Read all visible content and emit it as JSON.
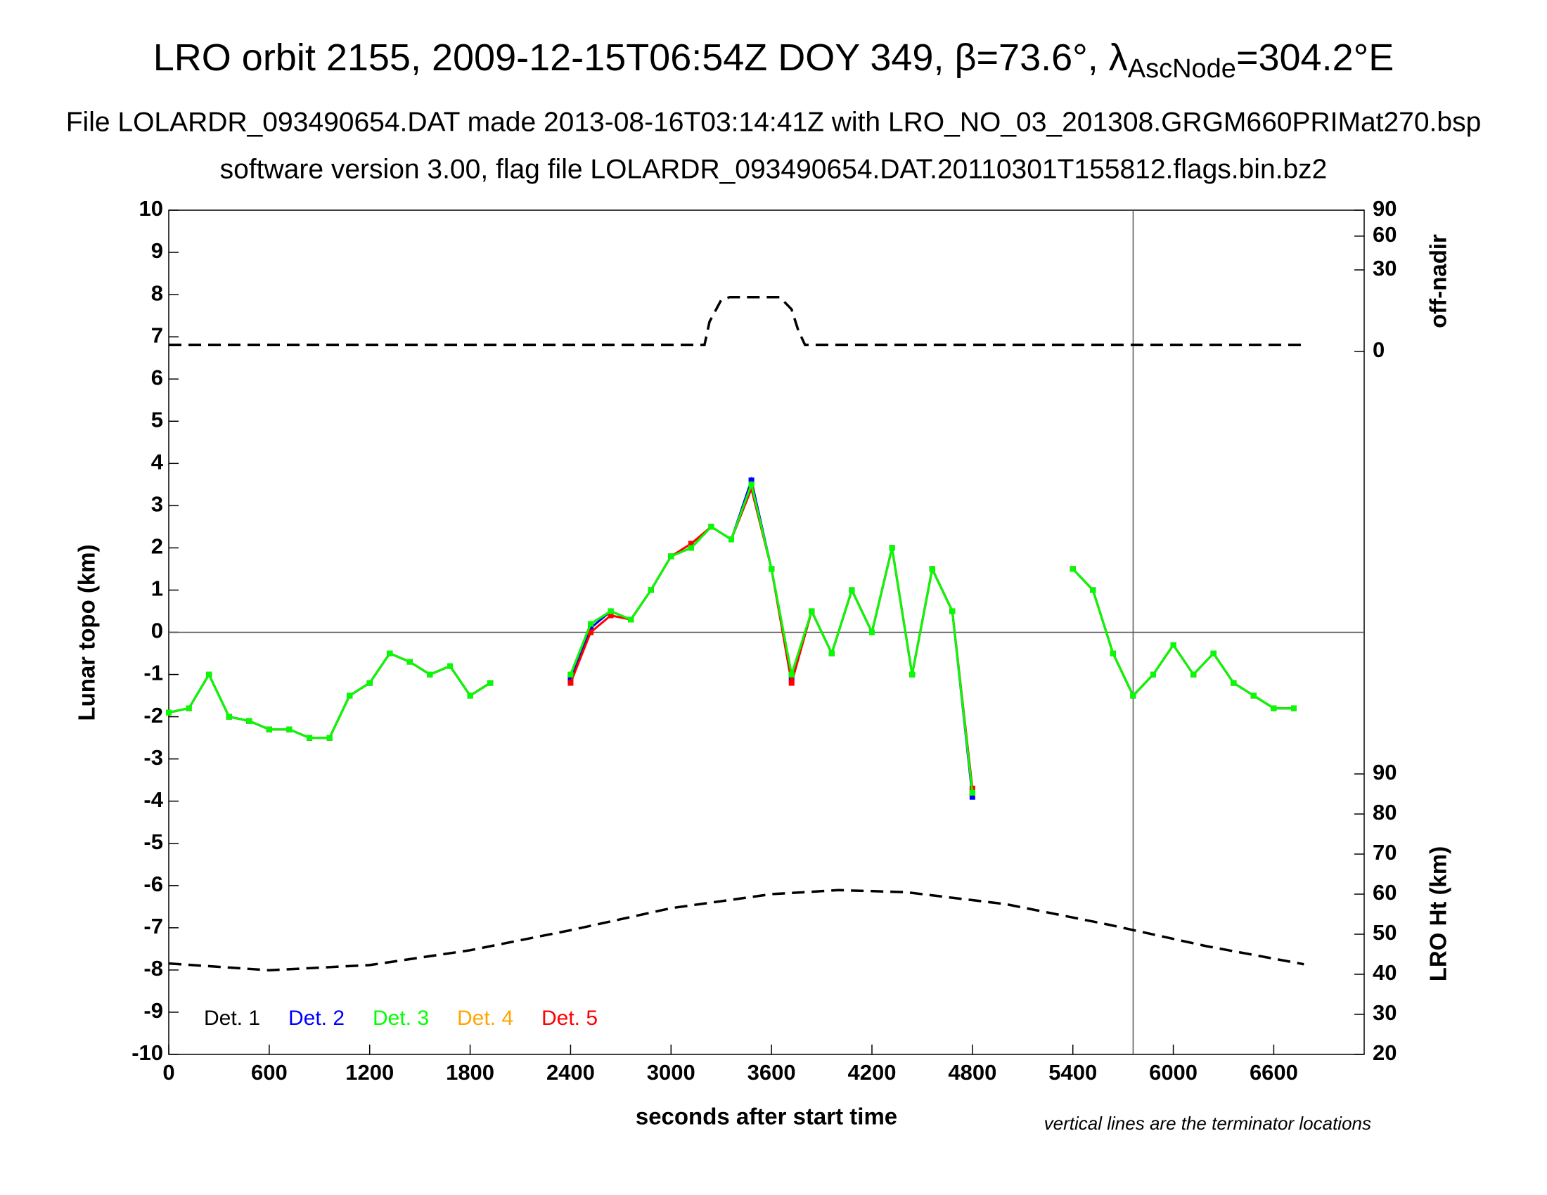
{
  "chart_data": {
    "type": "scatter",
    "title": "LRO orbit 2155, 2009-12-15T06:54Z DOY 349, β=73.6°, λ",
    "title_subscript": "AscNode",
    "title_end": "=304.2°E",
    "subtitle": "File LOLARDR_093490654.DAT made 2013-08-16T03:14:41Z with LRO_NO_03_201308.GRGM660PRIMat270.bsp",
    "subtitle2": "software version 3.00, flag file LOLARDR_093490654.DAT.20110301T155812.flags.bin.bz2",
    "xlabel": "seconds after start time",
    "ylabel": "Lunar topo (km)",
    "y2label": "off-nadir",
    "y3label": "LRO Ht (km)",
    "annotation": "vertical lines are the terminator locations",
    "xlim": [
      0,
      7140
    ],
    "xticks": [
      0,
      600,
      1200,
      1800,
      2400,
      3000,
      3600,
      4200,
      4800,
      5400,
      6000,
      6600
    ],
    "ylim": [
      -10,
      10
    ],
    "yticks": [
      -10,
      -9,
      -8,
      -7,
      -6,
      -5,
      -4,
      -3,
      -2,
      -1,
      0,
      1,
      2,
      3,
      4,
      5,
      6,
      7,
      8,
      9,
      10
    ],
    "y2lim": [
      0,
      90
    ],
    "y2scale": "sqrt",
    "y2ticks": [
      0,
      30,
      60,
      90
    ],
    "y3lim": [
      20,
      90
    ],
    "y3ticks": [
      20,
      30,
      40,
      50,
      60,
      70,
      80,
      90
    ],
    "terminator_x": [
      5760
    ],
    "x": [
      0,
      120,
      240,
      360,
      480,
      600,
      720,
      840,
      960,
      1080,
      1200,
      1320,
      1440,
      1560,
      1680,
      1800,
      1920,
      2040,
      2160,
      2280,
      2400,
      2520,
      2640,
      2760,
      2880,
      3000,
      3120,
      3240,
      3360,
      3480,
      3600,
      3720,
      3840,
      3960,
      4080,
      4200,
      4320,
      4440,
      4560,
      4680,
      4800,
      4920,
      5040,
      5160,
      5280,
      5400,
      5520,
      5640,
      5760,
      5880,
      6000,
      6120,
      6240,
      6360,
      6480,
      6600,
      6720,
      6840
    ],
    "series": [
      {
        "name": "Det. 1",
        "color": "#000000",
        "values": [
          -1.9,
          -1.8,
          -1.0,
          -2.0,
          -2.1,
          -2.3,
          -2.3,
          -2.5,
          -2.5,
          -1.5,
          -1.2,
          -0.5,
          -0.7,
          -1.0,
          -0.8,
          -1.5,
          -1.2,
          null,
          null,
          null,
          -1.0,
          0.2,
          0.5,
          0.3,
          1.0,
          1.8,
          2.0,
          2.5,
          2.2,
          3.5,
          1.5,
          -1.0,
          0.5,
          -0.5,
          1.0,
          0.0,
          2.0,
          -1.0,
          1.5,
          0.5,
          -3.8,
          null,
          null,
          null,
          null,
          1.5,
          1.0,
          -0.5,
          -1.5,
          -1.0,
          -0.3,
          -1.0,
          -0.5,
          -1.2,
          -1.5,
          -1.8,
          -1.8,
          null
        ]
      },
      {
        "name": "Det. 2",
        "color": "#0000ff",
        "values": [
          -1.9,
          -1.8,
          -1.0,
          -2.0,
          -2.1,
          -2.3,
          -2.3,
          -2.5,
          -2.5,
          -1.5,
          -1.2,
          -0.5,
          -0.7,
          -1.0,
          -0.8,
          -1.5,
          -1.2,
          null,
          null,
          null,
          -1.1,
          0.1,
          0.5,
          0.3,
          1.0,
          1.8,
          2.0,
          2.5,
          2.2,
          3.6,
          1.5,
          -1.1,
          0.5,
          -0.5,
          1.0,
          0.0,
          2.0,
          -1.0,
          1.5,
          0.5,
          -3.9,
          null,
          null,
          null,
          null,
          1.5,
          1.0,
          -0.5,
          -1.5,
          -1.0,
          -0.3,
          -1.0,
          -0.5,
          -1.2,
          -1.5,
          -1.8,
          -1.8,
          null
        ]
      },
      {
        "name": "Det. 3",
        "color": "#00ff00",
        "values": [
          -1.9,
          -1.8,
          -1.0,
          -2.0,
          -2.1,
          -2.3,
          -2.3,
          -2.5,
          -2.5,
          -1.5,
          -1.2,
          -0.5,
          -0.7,
          -1.0,
          -0.8,
          -1.5,
          -1.2,
          null,
          null,
          null,
          -1.0,
          0.2,
          0.5,
          0.3,
          1.0,
          1.8,
          2.0,
          2.5,
          2.2,
          3.5,
          1.5,
          -1.0,
          0.5,
          -0.5,
          1.0,
          0.0,
          2.0,
          -1.0,
          1.5,
          0.5,
          -3.8,
          null,
          null,
          null,
          null,
          1.5,
          1.0,
          -0.5,
          -1.5,
          -1.0,
          -0.3,
          -1.0,
          -0.5,
          -1.2,
          -1.5,
          -1.8,
          -1.8,
          null
        ]
      },
      {
        "name": "Det. 4",
        "color": "#ffa500",
        "values": [
          -1.9,
          -1.8,
          -1.0,
          -2.0,
          -2.1,
          -2.3,
          -2.3,
          -2.5,
          -2.5,
          -1.5,
          -1.2,
          -0.5,
          -0.7,
          -1.0,
          -0.8,
          -1.5,
          -1.2,
          null,
          null,
          null,
          -1.0,
          0.2,
          0.5,
          0.3,
          1.0,
          1.8,
          2.0,
          2.5,
          2.2,
          3.5,
          1.5,
          -1.0,
          0.5,
          -0.5,
          1.0,
          0.0,
          2.0,
          -1.0,
          1.5,
          0.5,
          -3.8,
          null,
          null,
          null,
          null,
          1.5,
          1.0,
          -0.5,
          -1.5,
          -1.0,
          -0.3,
          -1.0,
          -0.5,
          -1.2,
          -1.5,
          -1.8,
          -1.8,
          null
        ]
      },
      {
        "name": "Det. 5",
        "color": "#ff0000",
        "values": [
          -1.9,
          -1.8,
          -1.0,
          -2.0,
          -2.1,
          -2.3,
          -2.3,
          -2.5,
          -2.5,
          -1.5,
          -1.2,
          -0.5,
          -0.7,
          -1.0,
          -0.8,
          -1.5,
          -1.2,
          null,
          null,
          null,
          -1.2,
          0.0,
          0.4,
          0.3,
          1.0,
          1.8,
          2.1,
          2.5,
          2.2,
          3.4,
          1.5,
          -1.2,
          0.5,
          -0.5,
          1.0,
          0.0,
          2.0,
          -1.0,
          1.5,
          0.5,
          -3.7,
          null,
          null,
          null,
          null,
          1.5,
          1.0,
          -0.5,
          -1.5,
          -1.0,
          -0.3,
          -1.0,
          -0.5,
          -1.2,
          -1.5,
          -1.8,
          -1.8,
          null
        ]
      }
    ],
    "off_nadir": {
      "axis": "y2",
      "color": "#000000",
      "x": [
        0,
        3200,
        3230,
        3300,
        3350,
        3650,
        3720,
        3760,
        3800,
        6780
      ],
      "values": [
        0.2,
        0.2,
        4,
        12,
        13.3,
        13.3,
        8,
        2,
        0.2,
        0.2
      ]
    },
    "lro_height": {
      "axis": "y3",
      "color": "#000000",
      "x": [
        0,
        600,
        1200,
        1800,
        2400,
        3000,
        3600,
        4000,
        4400,
        5000,
        5600,
        6200,
        6780
      ],
      "values": [
        42.7,
        41,
        42.3,
        46,
        51,
        56.5,
        60,
        61,
        60.5,
        57.5,
        52.5,
        47,
        42.5
      ]
    }
  }
}
